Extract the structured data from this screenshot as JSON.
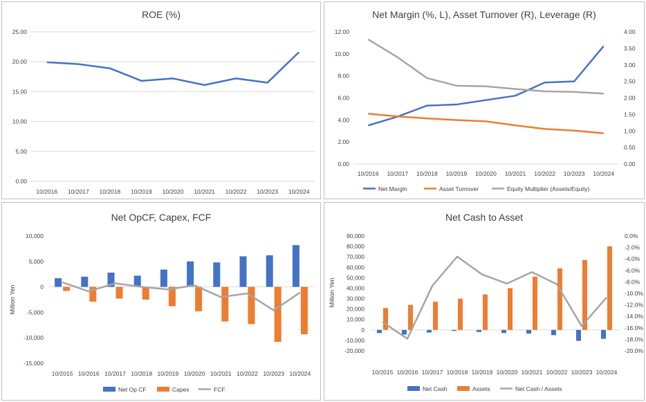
{
  "colors": {
    "blue": "#4472C4",
    "orange": "#ED7D31",
    "gray": "#A5A5A5",
    "grid": "#d9d9d9"
  },
  "chart_data": [
    {
      "type": "line",
      "title": "ROE (%)",
      "categories": [
        "10/2016",
        "10/2017",
        "10/2018",
        "10/2019",
        "10/2020",
        "10/2021",
        "10/2022",
        "10/2023",
        "10/2024"
      ],
      "series": [
        {
          "values": [
            19.9,
            19.6,
            18.9,
            16.8,
            17.2,
            16.1,
            17.2,
            16.5,
            21.6
          ]
        }
      ],
      "yticks": [
        "25.00",
        "20.00",
        "15.00",
        "10.00",
        "5.00",
        "0.00"
      ],
      "ylim": [
        0,
        25
      ],
      "grid": true
    },
    {
      "type": "line",
      "title": "Net Margin (%, L), Asset Turnover (R), Leverage (R)",
      "categories": [
        "10/2016",
        "10/2017",
        "10/2018",
        "10/2019",
        "10/2020",
        "10/2021",
        "10/2022",
        "10/2023",
        "10/2024"
      ],
      "series": [
        {
          "name": "Net Margin",
          "axis": "left",
          "values": [
            3.5,
            4.3,
            5.3,
            5.4,
            5.8,
            6.2,
            7.4,
            7.5,
            10.7
          ]
        },
        {
          "name": "Asset Turnover",
          "axis": "right",
          "values": [
            1.52,
            1.44,
            1.38,
            1.33,
            1.29,
            1.17,
            1.06,
            1.01,
            0.93
          ]
        },
        {
          "name": "Equity Multiplier (Assets/Equity)",
          "axis": "right",
          "values": [
            3.77,
            3.23,
            2.6,
            2.37,
            2.35,
            2.27,
            2.2,
            2.18,
            2.13
          ]
        }
      ],
      "yticks_left": [
        "12.00",
        "10.00",
        "8.00",
        "6.00",
        "4.00",
        "2.00",
        "0.00"
      ],
      "yticks_right": [
        "4.00",
        "3.50",
        "3.00",
        "2.50",
        "2.00",
        "1.50",
        "1.00",
        "0.50",
        "0.00"
      ],
      "ylim_left": [
        0,
        12
      ],
      "ylim_right": [
        0,
        4
      ],
      "legend": "bottom",
      "grid": false
    },
    {
      "type": "bar",
      "title": "Net OpCF, Capex, FCF",
      "ylabel": "Million Yen",
      "categories": [
        "10/2015",
        "10/2016",
        "10/2017",
        "10/2018",
        "10/2019",
        "10/2020",
        "10/2021",
        "10/2022",
        "10/2023",
        "10/2024"
      ],
      "series": [
        {
          "name": "Net Op CF",
          "kind": "bar",
          "values": [
            1700,
            2000,
            2800,
            2200,
            3400,
            5000,
            4800,
            6000,
            6200,
            8200
          ]
        },
        {
          "name": "Capex",
          "kind": "bar",
          "values": [
            -800,
            -2900,
            -2300,
            -2500,
            -3800,
            -4800,
            -6800,
            -7300,
            -10800,
            -9300
          ]
        },
        {
          "name": "FCF",
          "kind": "line",
          "values": [
            900,
            -900,
            700,
            0,
            -500,
            300,
            -2000,
            -1300,
            -4600,
            -1100
          ]
        }
      ],
      "yticks": [
        "10,000",
        "5,000",
        "0",
        "-5,000",
        "-10,000",
        "-15,000"
      ],
      "ylim": [
        -15000,
        10000
      ],
      "legend": "bottom",
      "grid": false
    },
    {
      "type": "bar",
      "title": "Net Cash to Asset",
      "ylabel": "Million Yen",
      "categories": [
        "10/2015",
        "10/2016",
        "10/2017",
        "10/2018",
        "10/2019",
        "10/2020",
        "10/2021",
        "10/2022",
        "10/2023",
        "10/2024"
      ],
      "series": [
        {
          "name": "Net Cash",
          "kind": "bar",
          "axis": "left",
          "values": [
            -3000,
            -4500,
            -2500,
            -1000,
            -2000,
            -3000,
            -3500,
            -5000,
            -10500,
            -8500
          ]
        },
        {
          "name": "Assets",
          "kind": "bar",
          "axis": "left",
          "values": [
            21000,
            24000,
            27000,
            30000,
            34000,
            40000,
            51000,
            59000,
            67000,
            80000
          ]
        },
        {
          "name": "Net Cash / Assets",
          "kind": "line",
          "axis": "right",
          "values": [
            -15.0,
            -17.9,
            -8.7,
            -3.6,
            -6.7,
            -8.3,
            -6.3,
            -8.4,
            -15.7,
            -10.7
          ]
        }
      ],
      "yticks_left": [
        "90,000",
        "80,000",
        "70,000",
        "60,000",
        "50,000",
        "40,000",
        "30,000",
        "20,000",
        "10,000",
        "0",
        "-10,000",
        "-20,000"
      ],
      "yticks_right": [
        "0.0%",
        "-2.0%",
        "-4.0%",
        "-6.0%",
        "-8.0%",
        "-10.0%",
        "-12.0%",
        "-14.0%",
        "-16.0%",
        "-18.0%",
        "-20.0%"
      ],
      "ylim_left": [
        -20000,
        90000
      ],
      "ylim_right": [
        -20,
        0
      ],
      "legend": "bottom",
      "grid": false
    }
  ]
}
